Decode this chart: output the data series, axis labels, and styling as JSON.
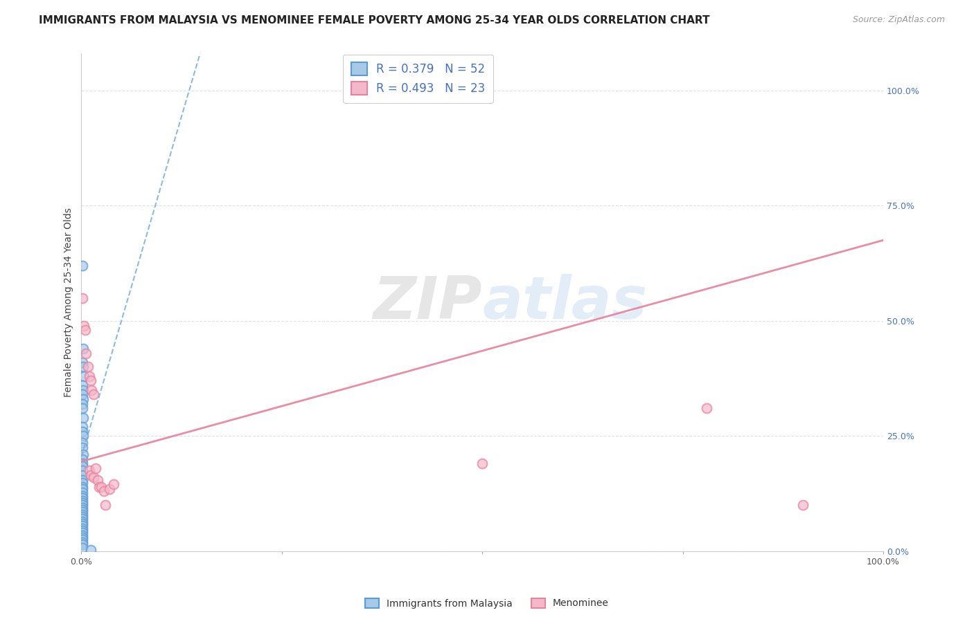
{
  "title": "IMMIGRANTS FROM MALAYSIA VS MENOMINEE FEMALE POVERTY AMONG 25-34 YEAR OLDS CORRELATION CHART",
  "source": "Source: ZipAtlas.com",
  "ylabel": "Female Poverty Among 25-34 Year Olds",
  "xlim": [
    0,
    1.0
  ],
  "ylim": [
    0,
    1.08
  ],
  "xtick_values": [
    0.0,
    0.25,
    0.5,
    0.75,
    1.0
  ],
  "xtick_labels": [
    "0.0%",
    "",
    "",
    "",
    "100.0%"
  ],
  "ytick_values_right": [
    0.0,
    0.25,
    0.5,
    0.75,
    1.0
  ],
  "ytick_labels_right": [
    "0.0%",
    "25.0%",
    "50.0%",
    "75.0%",
    "100.0%"
  ],
  "blue_R": 0.379,
  "blue_N": 52,
  "pink_R": 0.493,
  "pink_N": 23,
  "blue_label": "Immigrants from Malaysia",
  "pink_label": "Menominee",
  "blue_fill": "#a8c8e8",
  "blue_edge": "#5b9bd5",
  "pink_fill": "#f4b8cc",
  "pink_edge": "#e8819a",
  "blue_line_color": "#7ab0d8",
  "pink_line_color": "#e8819a",
  "blue_x": [
    0.001,
    0.002,
    0.001,
    0.002,
    0.003,
    0.001,
    0.002,
    0.001,
    0.002,
    0.001,
    0.001,
    0.002,
    0.001,
    0.001,
    0.002,
    0.001,
    0.001,
    0.002,
    0.001,
    0.001,
    0.001,
    0.001,
    0.001,
    0.001,
    0.001,
    0.001,
    0.001,
    0.001,
    0.001,
    0.001,
    0.001,
    0.001,
    0.001,
    0.001,
    0.001,
    0.001,
    0.001,
    0.001,
    0.001,
    0.001,
    0.001,
    0.001,
    0.001,
    0.001,
    0.001,
    0.001,
    0.001,
    0.001,
    0.001,
    0.001,
    0.001,
    0.012
  ],
  "blue_y": [
    0.62,
    0.44,
    0.41,
    0.4,
    0.38,
    0.36,
    0.35,
    0.34,
    0.33,
    0.32,
    0.31,
    0.29,
    0.27,
    0.26,
    0.25,
    0.235,
    0.225,
    0.21,
    0.2,
    0.19,
    0.185,
    0.175,
    0.165,
    0.155,
    0.148,
    0.14,
    0.135,
    0.128,
    0.12,
    0.115,
    0.11,
    0.105,
    0.1,
    0.095,
    0.09,
    0.085,
    0.08,
    0.075,
    0.07,
    0.065,
    0.06,
    0.055,
    0.05,
    0.045,
    0.04,
    0.035,
    0.03,
    0.025,
    0.02,
    0.015,
    0.008,
    0.003
  ],
  "pink_x": [
    0.001,
    0.003,
    0.005,
    0.006,
    0.008,
    0.01,
    0.012,
    0.013,
    0.015,
    0.01,
    0.012,
    0.015,
    0.018,
    0.02,
    0.022,
    0.025,
    0.028,
    0.03,
    0.035,
    0.04,
    0.5,
    0.78,
    0.9
  ],
  "pink_y": [
    0.55,
    0.49,
    0.48,
    0.43,
    0.4,
    0.38,
    0.37,
    0.35,
    0.34,
    0.175,
    0.165,
    0.16,
    0.18,
    0.155,
    0.14,
    0.14,
    0.13,
    0.1,
    0.135,
    0.145,
    0.19,
    0.31,
    0.1
  ],
  "blue_trend_x1": 0.0,
  "blue_trend_y1": 0.205,
  "blue_trend_x2": 0.148,
  "blue_trend_y2": 1.08,
  "pink_trend_x1": 0.0,
  "pink_trend_y1": 0.195,
  "pink_trend_x2": 1.0,
  "pink_trend_y2": 0.675,
  "watermark_zip": "ZIP",
  "watermark_atlas": "atlas",
  "bg": "#ffffff",
  "grid_color": "#dedede",
  "title_fontsize": 11,
  "ylabel_fontsize": 10,
  "tick_fontsize": 9,
  "legend_fontsize": 12,
  "marker_size": 100,
  "marker_lw": 1.5
}
